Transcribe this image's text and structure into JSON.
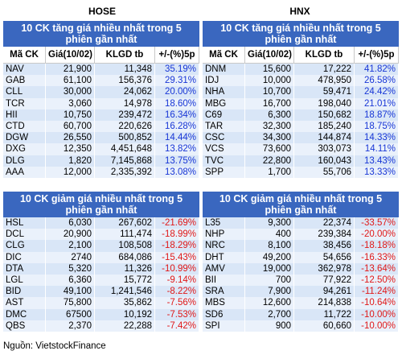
{
  "exchanges": {
    "left": "HOSE",
    "right": "HNX"
  },
  "headers": {
    "code": "Mã CK",
    "price": "Giá(10/02)",
    "klgd": "KLGD tb",
    "pct": "+/-(%)5p"
  },
  "panels": {
    "hose_up": {
      "title": "10 CK tăng giá nhiều nhất trong 5 phiên gần nhất",
      "rows": [
        {
          "code": "NAV",
          "price": "21,900",
          "klgd": "11,348",
          "pct": "35.19%"
        },
        {
          "code": "GAB",
          "price": "61,100",
          "klgd": "156,376",
          "pct": "29.31%"
        },
        {
          "code": "CLL",
          "price": "30,000",
          "klgd": "24,062",
          "pct": "20.00%"
        },
        {
          "code": "TCR",
          "price": "3,060",
          "klgd": "14,978",
          "pct": "18.60%"
        },
        {
          "code": "HII",
          "price": "10,750",
          "klgd": "239,472",
          "pct": "16.34%"
        },
        {
          "code": "CTD",
          "price": "60,700",
          "klgd": "220,626",
          "pct": "16.28%"
        },
        {
          "code": "DGW",
          "price": "26,550",
          "klgd": "500,852",
          "pct": "14.44%"
        },
        {
          "code": "DXG",
          "price": "12,350",
          "klgd": "4,451,648",
          "pct": "13.82%"
        },
        {
          "code": "DLG",
          "price": "1,820",
          "klgd": "7,145,868",
          "pct": "13.75%"
        },
        {
          "code": "AAA",
          "price": "12,000",
          "klgd": "2,335,392",
          "pct": "13.08%"
        }
      ]
    },
    "hnx_up": {
      "title": "10 CK tăng giá nhiều nhất trong 5 phiên gần nhất",
      "rows": [
        {
          "code": "DNM",
          "price": "15,600",
          "klgd": "17,222",
          "pct": "41.82%"
        },
        {
          "code": "IDJ",
          "price": "10,000",
          "klgd": "478,950",
          "pct": "26.58%"
        },
        {
          "code": "NHA",
          "price": "10,700",
          "klgd": "59,471",
          "pct": "24.42%"
        },
        {
          "code": "MBG",
          "price": "16,700",
          "klgd": "198,040",
          "pct": "21.01%"
        },
        {
          "code": "C69",
          "price": "6,300",
          "klgd": "150,682",
          "pct": "18.87%"
        },
        {
          "code": "TAR",
          "price": "32,300",
          "klgd": "185,240",
          "pct": "18.75%"
        },
        {
          "code": "CSC",
          "price": "34,300",
          "klgd": "144,874",
          "pct": "14.33%"
        },
        {
          "code": "VCS",
          "price": "73,600",
          "klgd": "303,073",
          "pct": "14.11%"
        },
        {
          "code": "TVC",
          "price": "22,800",
          "klgd": "160,043",
          "pct": "13.43%"
        },
        {
          "code": "SPP",
          "price": "1,700",
          "klgd": "55,706",
          "pct": "13.33%"
        }
      ]
    },
    "hose_down": {
      "title": "10 CK giảm giá nhiều nhất trong 5 phiên gần nhất",
      "rows": [
        {
          "code": "HSL",
          "price": "6,030",
          "klgd": "267,602",
          "pct": "-21.69%"
        },
        {
          "code": "DCL",
          "price": "20,900",
          "klgd": "111,474",
          "pct": "-18.99%"
        },
        {
          "code": "CLG",
          "price": "2,100",
          "klgd": "108,508",
          "pct": "-18.29%"
        },
        {
          "code": "DIC",
          "price": "2740",
          "klgd": "684,086",
          "pct": "-15.43%"
        },
        {
          "code": "DTA",
          "price": "5,320",
          "klgd": "11,326",
          "pct": "-10.99%"
        },
        {
          "code": "LGL",
          "price": "6,360",
          "klgd": "15,772",
          "pct": "-9.14%"
        },
        {
          "code": "BID",
          "price": "49,100",
          "klgd": "1,241,546",
          "pct": "-8.22%"
        },
        {
          "code": "AST",
          "price": "75,800",
          "klgd": "35,862",
          "pct": "-7.56%"
        },
        {
          "code": "DMC",
          "price": "67500",
          "klgd": "10,192",
          "pct": "-7.53%"
        },
        {
          "code": "QBS",
          "price": "2,370",
          "klgd": "22,288",
          "pct": "-7.42%"
        }
      ]
    },
    "hnx_down": {
      "title": "10 CK giảm giá nhiều nhất trong 5 phiên gần nhất",
      "rows": [
        {
          "code": "L35",
          "price": "9,300",
          "klgd": "22,374",
          "pct": "-33.57%"
        },
        {
          "code": "NHP",
          "price": "400",
          "klgd": "239,384",
          "pct": "-20.00%"
        },
        {
          "code": "NRC",
          "price": "8,100",
          "klgd": "38,456",
          "pct": "-18.18%"
        },
        {
          "code": "DHT",
          "price": "49,200",
          "klgd": "54,656",
          "pct": "-16.33%"
        },
        {
          "code": "AMV",
          "price": "19,000",
          "klgd": "362,978",
          "pct": "-13.64%"
        },
        {
          "code": "BII",
          "price": "700",
          "klgd": "77,922",
          "pct": "-12.50%"
        },
        {
          "code": "SRA",
          "price": "7,900",
          "klgd": "94,261",
          "pct": "-11.24%"
        },
        {
          "code": "MBS",
          "price": "12,600",
          "klgd": "214,838",
          "pct": "-10.64%"
        },
        {
          "code": "SD6",
          "price": "2,700",
          "klgd": "11,722",
          "pct": "-10.00%"
        },
        {
          "code": "SPI",
          "price": "900",
          "klgd": "60,660",
          "pct": "-10.00%"
        }
      ]
    }
  },
  "source": "Nguồn: VietstockFinance",
  "colors": {
    "header_bg": "#3a67bf",
    "positive": "#1836d6",
    "negative": "#e01818",
    "row_bg": "#d9e6f7"
  }
}
